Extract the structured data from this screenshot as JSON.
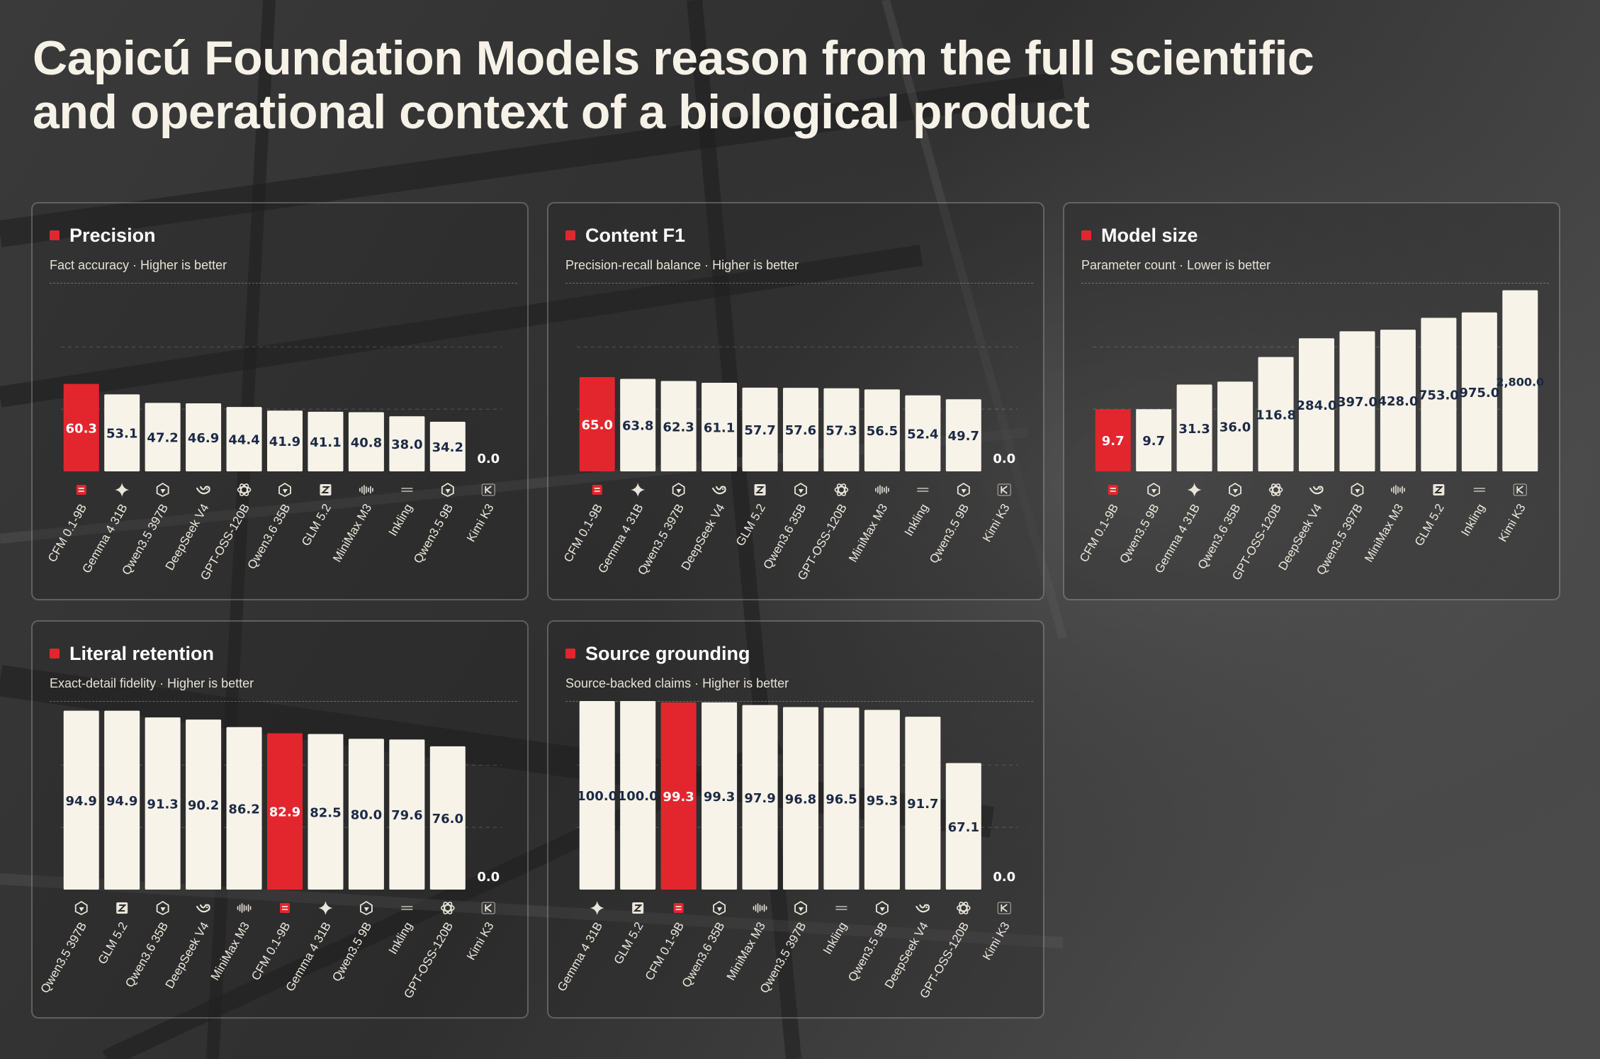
{
  "headline": "Capicú Foundation Models reason from the full scientific and operational context of a biological product",
  "colors": {
    "highlight": "#e3262d",
    "bar": "#f7f3e9",
    "label_on_bar": "#1c2a45",
    "label_on_highlight": "#ffffff"
  },
  "icons": {
    "CFM 0.1-9B": "capicu-logo-icon",
    "Gemma 4 31B": "sparkle-icon",
    "Qwen3.5 397B": "qwen-icon",
    "Qwen3.5 9B": "qwen-icon",
    "Qwen3.6 35B": "qwen-icon",
    "DeepSeek V4": "deepseek-whale-icon",
    "GPT-OSS-120B": "openai-knot-icon",
    "GLM 5.2": "zhipu-z-icon",
    "MiniMax M3": "minimax-wave-icon",
    "Inkling": "inkling-dash-icon",
    "Kimi K3": "kimi-k-icon"
  },
  "chart_data": [
    {
      "type": "bar",
      "title": "Precision",
      "subtitle": "Fact accuracy · Higher is better",
      "categories": [
        "CFM 0.1-9B",
        "Gemma 4 31B",
        "Qwen3.5 397B",
        "DeepSeek V4",
        "GPT-OSS-120B",
        "Qwen3.6 35B",
        "GLM 5.2",
        "MiniMax M3",
        "Inkling",
        "Qwen3.5 9B",
        "Kimi K3"
      ],
      "values": [
        60.3,
        53.1,
        47.2,
        46.9,
        44.4,
        41.9,
        41.1,
        40.8,
        38.0,
        34.2,
        0.0
      ],
      "highlight": "CFM 0.1-9B",
      "ylim": [
        0,
        130
      ]
    },
    {
      "type": "bar",
      "title": "Content F1",
      "subtitle": "Precision-recall balance · Higher is better",
      "categories": [
        "CFM 0.1-9B",
        "Gemma 4 31B",
        "Qwen3.5 397B",
        "DeepSeek V4",
        "GLM 5.2",
        "Qwen3.6 35B",
        "GPT-OSS-120B",
        "MiniMax M3",
        "Inkling",
        "Qwen3.5 9B",
        "Kimi K3"
      ],
      "values": [
        65.0,
        63.8,
        62.3,
        61.1,
        57.7,
        57.6,
        57.3,
        56.5,
        52.4,
        49.7,
        0.0
      ],
      "highlight": "CFM 0.1-9B",
      "ylim": [
        0,
        130
      ]
    },
    {
      "type": "bar",
      "title": "Model size",
      "subtitle": "Parameter count · Lower is better",
      "categories": [
        "CFM 0.1-9B",
        "Qwen3.5 9B",
        "Gemma 4 31B",
        "Qwen3.6 35B",
        "GPT-OSS-120B",
        "DeepSeek V4",
        "Qwen3.5 397B",
        "MiniMax M3",
        "GLM 5.2",
        "Inkling",
        "Kimi K3"
      ],
      "values": [
        9.7,
        9.7,
        31.3,
        36.0,
        116.8,
        284.0,
        397.0,
        428.0,
        753.0,
        975.0,
        2800.0
      ],
      "labels": [
        "9.7",
        "9.7",
        "31.3",
        "36.0",
        "116.8",
        "284.0",
        "397.0",
        "428.0",
        "753.0",
        "975.0",
        "2,800.0"
      ],
      "highlight": "CFM 0.1-9B",
      "scale": "log",
      "ylim": [
        0.5,
        4000
      ]
    },
    {
      "type": "bar",
      "title": "Literal retention",
      "subtitle": "Exact-detail fidelity · Higher is better",
      "categories": [
        "Qwen3.5 397B",
        "GLM 5.2",
        "Qwen3.6 35B",
        "DeepSeek V4",
        "MiniMax M3",
        "CFM 0.1-9B",
        "Gemma 4 31B",
        "Qwen3.5 9B",
        "Inkling",
        "GPT-OSS-120B",
        "Kimi K3"
      ],
      "values": [
        94.9,
        94.9,
        91.3,
        90.2,
        86.2,
        82.9,
        82.5,
        80.0,
        79.6,
        76.0,
        0.0
      ],
      "highlight": "CFM 0.1-9B",
      "ylim": [
        0,
        100
      ]
    },
    {
      "type": "bar",
      "title": "Source grounding",
      "subtitle": "Source-backed claims · Higher is better",
      "categories": [
        "Gemma 4 31B",
        "GLM 5.2",
        "CFM 0.1-9B",
        "Qwen3.6 35B",
        "MiniMax M3",
        "Qwen3.5 397B",
        "Inkling",
        "Qwen3.5 9B",
        "DeepSeek V4",
        "GPT-OSS-120B",
        "Kimi K3"
      ],
      "values": [
        100.0,
        100.0,
        99.3,
        99.3,
        97.9,
        96.8,
        96.5,
        95.3,
        91.7,
        67.1,
        0.0
      ],
      "highlight": "CFM 0.1-9B",
      "ylim": [
        0,
        100
      ]
    }
  ]
}
